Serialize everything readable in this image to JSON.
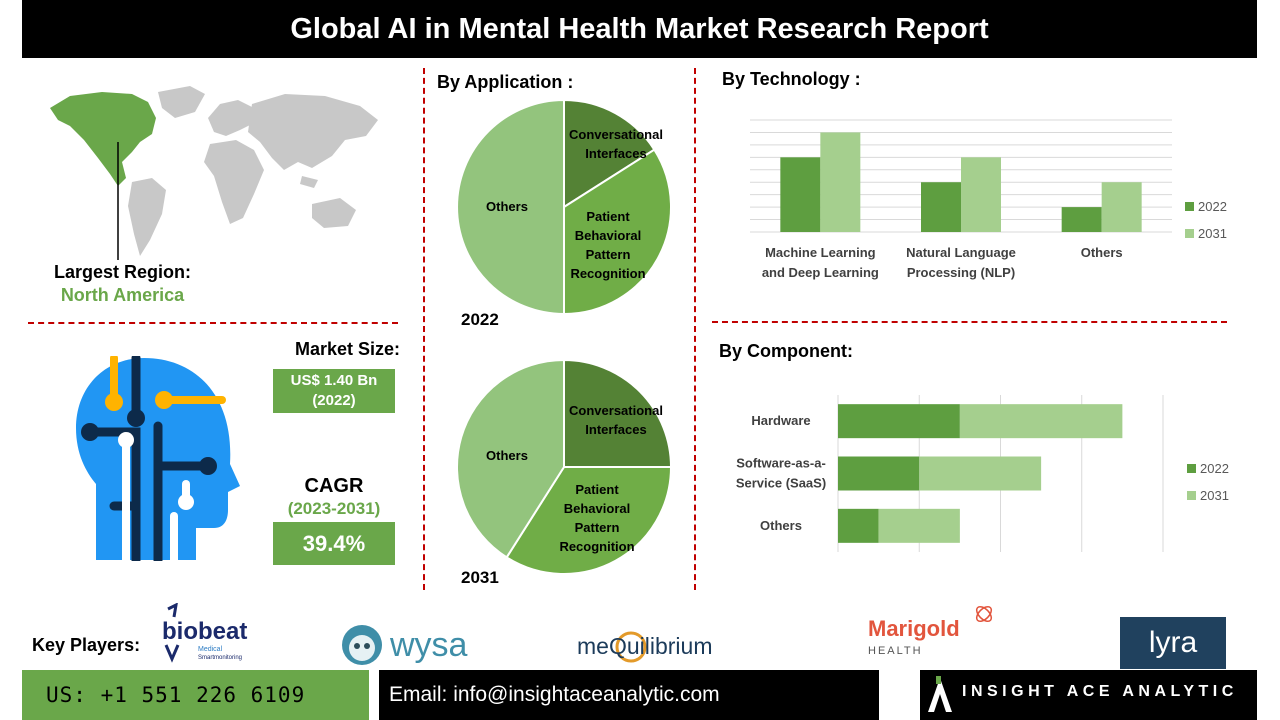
{
  "header": {
    "title": "Global AI in Mental Health Market Research Report"
  },
  "region": {
    "label": "Largest Region:",
    "value": "North America",
    "map_color": "#6aa74a"
  },
  "market_size": {
    "label": "Market Size:",
    "value_line1": "US$ 1.40 Bn",
    "value_line2": "(2022)"
  },
  "cagr": {
    "label": "CAGR",
    "period": "(2023-2031)",
    "value": "39.4%"
  },
  "application": {
    "title": "By Application :",
    "year_a": "2022",
    "year_b": "2031"
  },
  "technology": {
    "title": "By Technology :"
  },
  "component": {
    "title": "By Component:"
  },
  "colors": {
    "series_2022": "#5e9e40",
    "series_2031": "#a5cf8e",
    "accent": "#6aa74a",
    "divider": "#c00000",
    "head_icon": "#2196f3"
  },
  "chart_data": [
    {
      "type": "pie",
      "year": "2022",
      "labels": [
        "Conversational Interfaces",
        "Patient Behavioral Pattern Recognition",
        "Others"
      ],
      "label_lines": [
        [
          "Conversational",
          "Interfaces"
        ],
        [
          "Patient",
          "Behavioral",
          "Pattern",
          "Recognition"
        ],
        [
          "Others"
        ]
      ],
      "values": [
        16,
        34,
        50
      ],
      "colors": [
        "#548235",
        "#70ad47",
        "#93c47d"
      ]
    },
    {
      "type": "pie",
      "year": "2031",
      "labels": [
        "Conversational Interfaces",
        "Patient Behavioral Pattern Recognition",
        "Others"
      ],
      "label_lines": [
        [
          "Conversational",
          "Interfaces"
        ],
        [
          "Patient",
          "Behavioral",
          "Pattern",
          "Recognition"
        ],
        [
          "Others"
        ]
      ],
      "values": [
        25,
        34,
        41
      ],
      "colors": [
        "#548235",
        "#70ad47",
        "#93c47d"
      ]
    },
    {
      "type": "bar",
      "orientation": "vertical",
      "categories": [
        [
          "Machine Learning",
          "and Deep Learning"
        ],
        [
          "Natural Language",
          "Processing (NLP)"
        ],
        [
          "Others"
        ]
      ],
      "series": [
        {
          "name": "2022",
          "values": [
            3,
            2,
            1
          ]
        },
        {
          "name": "2031",
          "values": [
            4,
            3,
            2
          ]
        }
      ],
      "ylim": [
        0,
        4.5
      ],
      "grid": true,
      "legend": "right"
    },
    {
      "type": "bar",
      "orientation": "horizontal",
      "stacked": true,
      "categories": [
        [
          "Hardware"
        ],
        [
          "Software-as-a-",
          "Service (SaaS)"
        ],
        [
          "Others"
        ]
      ],
      "series": [
        {
          "name": "2022",
          "values": [
            1.5,
            1,
            0.5
          ]
        },
        {
          "name": "2031",
          "values": [
            2,
            1.5,
            1
          ]
        }
      ],
      "xlim": [
        0,
        4
      ],
      "grid": true,
      "legend": "right"
    }
  ],
  "key_players": {
    "label": "Key Players:",
    "logos": [
      {
        "name": "biobeat",
        "sub": "Medical",
        "sub2": "Smartmonitoring"
      },
      {
        "name": "wysa"
      },
      {
        "name": "meQuilibrium"
      },
      {
        "name": "Marigold",
        "sub": "HEALTH"
      },
      {
        "name": "lyra"
      }
    ]
  },
  "footer": {
    "phone": "US: +1 551 226 6109",
    "email_label": "Email:",
    "email": "info@insightaceanalytic.com",
    "brand": "INSIGHT ACE ANALYTIC"
  }
}
